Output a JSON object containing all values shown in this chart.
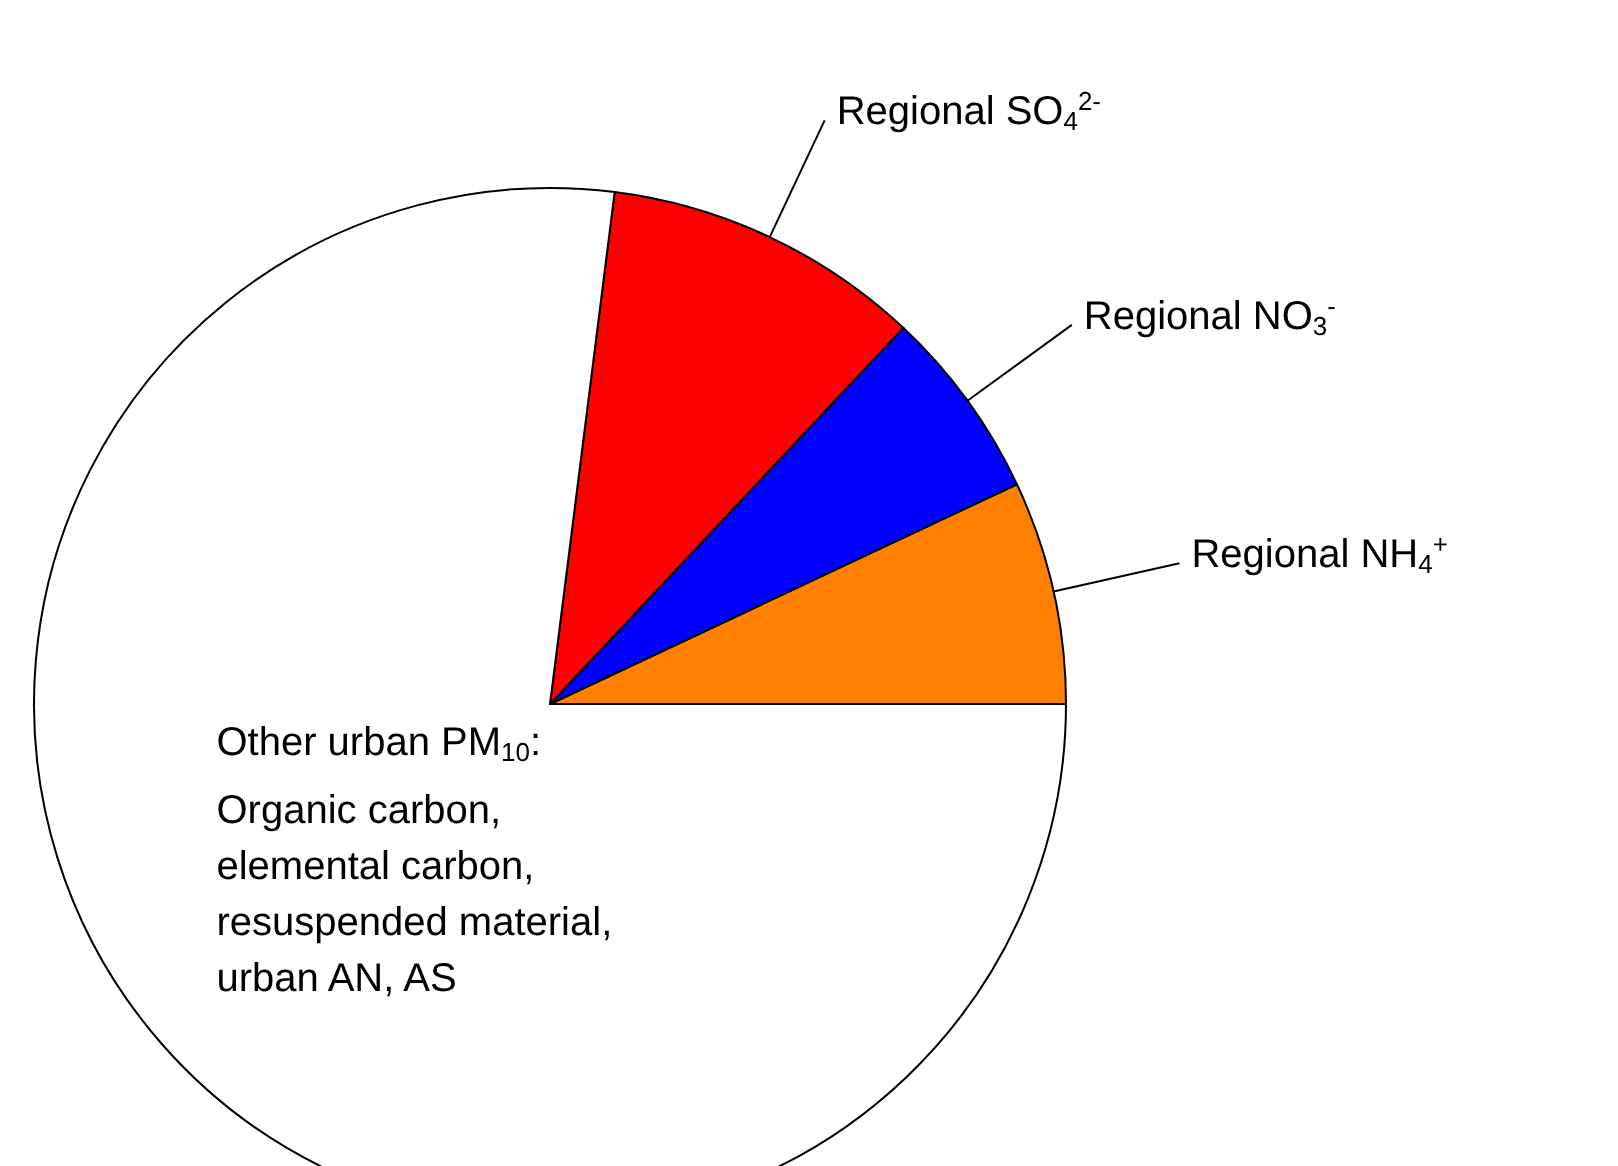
{
  "chart_data": {
    "type": "pie",
    "categories": [
      "Regional NH$_{4}$$^{+}$",
      "Regional NO$_{3}$$^{-}$",
      "Regional SO$_{4}$$^{2-}$",
      "Other urban PM$_{10}$:\nOrganic carbon,\nelemental carbon,\nresuspended material,\nurban AN, AS"
    ],
    "values": [
      7,
      6,
      10,
      77
    ],
    "colors": [
      "#ff8000",
      "#0000ff",
      "#ff0000",
      "#ffffff"
    ]
  }
}
